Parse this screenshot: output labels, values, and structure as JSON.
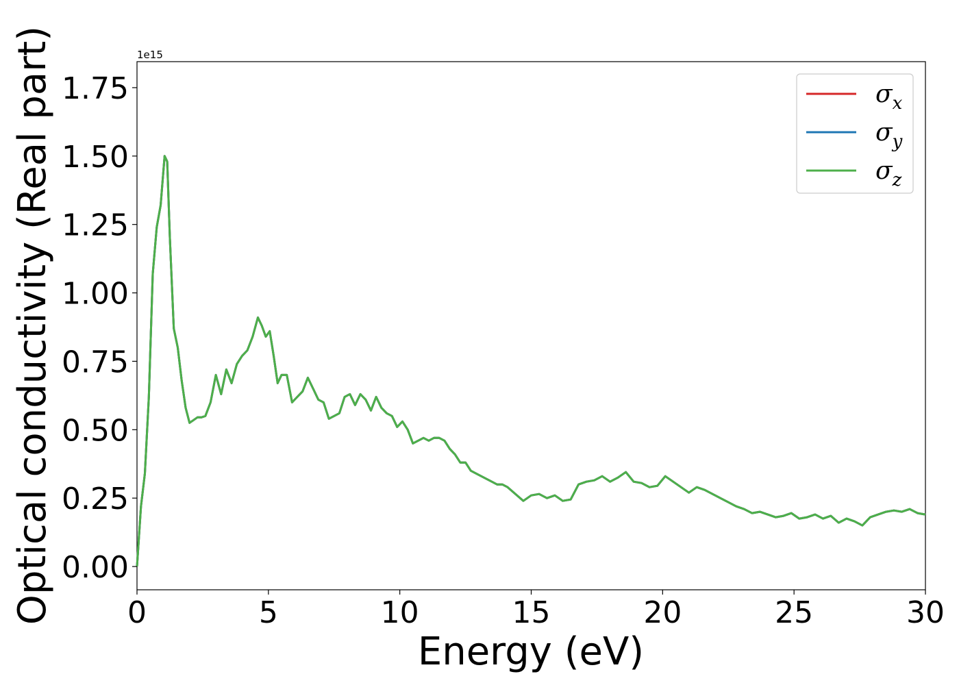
{
  "chart_data": {
    "type": "line",
    "title": "",
    "xlabel": "Energy (eV)",
    "ylabel": "Optical conductivity (Real part)",
    "y_offset_label": "1e15",
    "y_scale": 1000000000000000.0,
    "xlim": [
      0,
      30
    ],
    "ylim": [
      -0.085,
      1.845
    ],
    "x_ticks": [
      0,
      5,
      10,
      15,
      20,
      25,
      30
    ],
    "x_tick_labels": [
      "0",
      "5",
      "10",
      "15",
      "20",
      "25",
      "30"
    ],
    "y_ticks": [
      0.0,
      0.25,
      0.5,
      0.75,
      1.0,
      1.25,
      1.5,
      1.75
    ],
    "y_tick_labels": [
      "0.00",
      "0.25",
      "0.50",
      "0.75",
      "1.00",
      "1.25",
      "1.50",
      "1.75"
    ],
    "grid": false,
    "legend_position": "top-right",
    "series": [
      {
        "name": "σ",
        "subscript": "x",
        "color": "#d62728",
        "line_ref": "sigma_z"
      },
      {
        "name": "σ",
        "subscript": "y",
        "color": "#1f77b4",
        "line_ref": "sigma_z"
      },
      {
        "name": "σ",
        "subscript": "z",
        "color": "#4daf4a",
        "line_ref": "sigma_z"
      }
    ],
    "sigma_z": {
      "x": [
        0,
        0.15,
        0.3,
        0.45,
        0.6,
        0.75,
        0.9,
        1.05,
        1.15,
        1.25,
        1.4,
        1.55,
        1.7,
        1.85,
        2.0,
        2.15,
        2.3,
        2.45,
        2.6,
        2.8,
        3.0,
        3.2,
        3.4,
        3.6,
        3.8,
        4.0,
        4.2,
        4.4,
        4.6,
        4.75,
        4.9,
        5.05,
        5.2,
        5.35,
        5.5,
        5.7,
        5.9,
        6.1,
        6.3,
        6.5,
        6.7,
        6.9,
        7.1,
        7.3,
        7.5,
        7.7,
        7.9,
        8.1,
        8.3,
        8.5,
        8.7,
        8.9,
        9.1,
        9.3,
        9.5,
        9.7,
        9.9,
        10.1,
        10.3,
        10.5,
        10.7,
        10.9,
        11.1,
        11.3,
        11.5,
        11.7,
        11.9,
        12.1,
        12.3,
        12.5,
        12.7,
        12.9,
        13.1,
        13.3,
        13.5,
        13.7,
        13.9,
        14.1,
        14.4,
        14.7,
        15.0,
        15.3,
        15.6,
        15.9,
        16.2,
        16.5,
        16.8,
        17.1,
        17.4,
        17.7,
        18.0,
        18.3,
        18.6,
        18.9,
        19.2,
        19.5,
        19.8,
        20.1,
        20.4,
        20.7,
        21.0,
        21.3,
        21.6,
        21.9,
        22.2,
        22.5,
        22.8,
        23.1,
        23.4,
        23.7,
        24.0,
        24.3,
        24.6,
        24.9,
        25.2,
        25.5,
        25.8,
        26.1,
        26.4,
        26.7,
        27.0,
        27.3,
        27.6,
        27.9,
        28.2,
        28.5,
        28.8,
        29.1,
        29.4,
        29.7,
        30.0
      ],
      "y": [
        0.0,
        0.22,
        0.34,
        0.62,
        1.07,
        1.24,
        1.32,
        1.5,
        1.48,
        1.2,
        0.87,
        0.8,
        0.68,
        0.58,
        0.525,
        0.535,
        0.545,
        0.545,
        0.55,
        0.6,
        0.7,
        0.63,
        0.72,
        0.67,
        0.74,
        0.77,
        0.79,
        0.84,
        0.91,
        0.88,
        0.84,
        0.86,
        0.77,
        0.67,
        0.7,
        0.7,
        0.6,
        0.62,
        0.64,
        0.69,
        0.65,
        0.61,
        0.6,
        0.54,
        0.55,
        0.56,
        0.62,
        0.63,
        0.59,
        0.63,
        0.61,
        0.57,
        0.62,
        0.58,
        0.56,
        0.55,
        0.51,
        0.53,
        0.5,
        0.45,
        0.46,
        0.47,
        0.46,
        0.47,
        0.47,
        0.46,
        0.43,
        0.41,
        0.38,
        0.38,
        0.35,
        0.34,
        0.33,
        0.32,
        0.31,
        0.3,
        0.3,
        0.29,
        0.265,
        0.24,
        0.26,
        0.265,
        0.25,
        0.26,
        0.24,
        0.245,
        0.3,
        0.31,
        0.315,
        0.33,
        0.31,
        0.325,
        0.345,
        0.31,
        0.305,
        0.29,
        0.295,
        0.33,
        0.31,
        0.29,
        0.27,
        0.29,
        0.28,
        0.265,
        0.25,
        0.235,
        0.22,
        0.21,
        0.195,
        0.2,
        0.19,
        0.18,
        0.185,
        0.195,
        0.175,
        0.18,
        0.19,
        0.175,
        0.185,
        0.16,
        0.175,
        0.165,
        0.15,
        0.18,
        0.19,
        0.2,
        0.205,
        0.2,
        0.21,
        0.195,
        0.19
      ]
    }
  }
}
